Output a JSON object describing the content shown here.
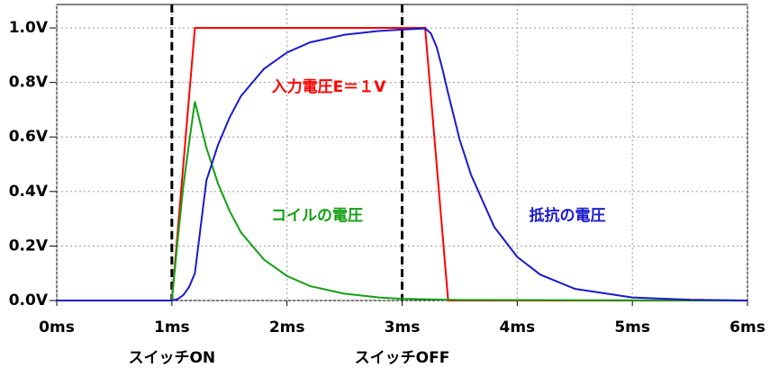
{
  "chart_data": {
    "type": "line",
    "xlim": [
      0,
      6
    ],
    "ylim": [
      0,
      1.086
    ],
    "xticks": [
      {
        "value": 0,
        "label": "0ms"
      },
      {
        "value": 1,
        "label": "1ms"
      },
      {
        "value": 2,
        "label": "2ms"
      },
      {
        "value": 3,
        "label": "3ms"
      },
      {
        "value": 4,
        "label": "4ms"
      },
      {
        "value": 5,
        "label": "5ms"
      },
      {
        "value": 6,
        "label": "6ms"
      }
    ],
    "yticks": [
      {
        "value": 0,
        "label": "0.0V"
      },
      {
        "value": 0.2,
        "label": "0.2V"
      },
      {
        "value": 0.4,
        "label": "0.4V"
      },
      {
        "value": 0.6,
        "label": "0.6V"
      },
      {
        "value": 0.8,
        "label": "0.8V"
      },
      {
        "value": 1.0,
        "label": "1.0V"
      }
    ],
    "grid": true,
    "events": [
      {
        "x": 1,
        "label": "スイッチON"
      },
      {
        "x": 3,
        "label": "スイッチOFF"
      }
    ],
    "series": [
      {
        "name": "入力電圧E＝１V",
        "color": "#ff0000",
        "x": [
          0,
          1,
          1.2,
          3.2,
          3.4,
          6
        ],
        "values": [
          0,
          0,
          1,
          1,
          0,
          0
        ]
      },
      {
        "name": "コイルの電圧",
        "color": "#13a013",
        "x": [
          0,
          1,
          1.05,
          1.1,
          1.15,
          1.2,
          1.3,
          1.4,
          1.5,
          1.6,
          1.8,
          2,
          2.2,
          2.5,
          2.8,
          3,
          3.5,
          6
        ],
        "values": [
          0,
          0,
          0.22,
          0.42,
          0.58,
          0.73,
          0.56,
          0.43,
          0.33,
          0.25,
          0.15,
          0.09,
          0.053,
          0.025,
          0.011,
          0.006,
          0.002,
          0
        ]
      },
      {
        "name": "抵抗の電圧",
        "color": "#1a1acc",
        "x": [
          0,
          1,
          1.05,
          1.1,
          1.15,
          1.2,
          1.3,
          1.4,
          1.5,
          1.6,
          1.8,
          2,
          2.2,
          2.5,
          2.8,
          3,
          3.2,
          3.25,
          3.3,
          3.35,
          3.4,
          3.5,
          3.6,
          3.8,
          4,
          4.2,
          4.5,
          5,
          5.5,
          6
        ],
        "values": [
          0,
          0,
          0.005,
          0.02,
          0.05,
          0.1,
          0.44,
          0.57,
          0.67,
          0.75,
          0.85,
          0.91,
          0.947,
          0.975,
          0.989,
          0.994,
          0.998,
          0.98,
          0.93,
          0.85,
          0.76,
          0.59,
          0.46,
          0.27,
          0.16,
          0.095,
          0.043,
          0.011,
          0.003,
          0
        ]
      }
    ]
  }
}
